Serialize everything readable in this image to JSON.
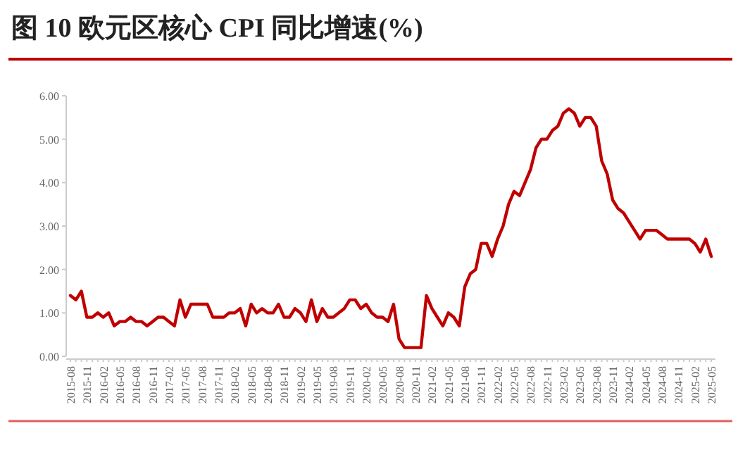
{
  "chart_data": {
    "type": "line",
    "title": "图 10 欧元区核心 CPI 同比增速(%)",
    "categories": [
      "2015-08",
      null,
      null,
      "2015-11",
      null,
      null,
      "2016-02",
      null,
      null,
      "2016-05",
      null,
      null,
      "2016-08",
      null,
      null,
      "2016-11",
      null,
      null,
      "2017-02",
      null,
      null,
      "2017-05",
      null,
      null,
      "2017-08",
      null,
      null,
      "2017-11",
      null,
      null,
      "2018-02",
      null,
      null,
      "2018-05",
      null,
      null,
      "2018-08",
      null,
      null,
      "2018-11",
      null,
      null,
      "2019-02",
      null,
      null,
      "2019-05",
      null,
      null,
      "2019-08",
      null,
      null,
      "2019-11",
      null,
      null,
      "2020-02",
      null,
      null,
      "2020-05",
      null,
      null,
      "2020-08",
      null,
      null,
      "2020-11",
      null,
      null,
      "2021-02",
      null,
      null,
      "2021-05",
      null,
      null,
      "2021-08",
      null,
      null,
      "2021-11",
      null,
      null,
      "2022-02",
      null,
      null,
      "2022-05",
      null,
      null,
      "2022-08",
      null,
      null,
      "2022-11",
      null,
      null,
      "2023-02",
      null,
      null,
      "2023-05",
      null,
      null,
      "2023-08",
      null,
      null,
      "2023-11",
      null,
      null,
      "2024-02",
      null,
      null,
      "2024-05",
      null,
      null,
      "2024-08",
      null,
      null,
      "2024-11",
      null,
      null,
      "2025-02",
      null,
      null,
      "2025-05"
    ],
    "series": [
      {
        "color": "#c00000",
        "values": [
          1.4,
          1.3,
          1.5,
          0.9,
          0.9,
          1.0,
          0.9,
          1.0,
          0.7,
          0.8,
          0.8,
          0.9,
          0.8,
          0.8,
          0.7,
          0.8,
          0.9,
          0.9,
          0.8,
          0.7,
          1.3,
          0.9,
          1.2,
          1.2,
          1.2,
          1.2,
          0.9,
          0.9,
          0.9,
          1.0,
          1.0,
          1.1,
          0.7,
          1.2,
          1.0,
          1.1,
          1.0,
          1.0,
          1.2,
          0.9,
          0.9,
          1.1,
          1.0,
          0.8,
          1.3,
          0.8,
          1.1,
          0.9,
          0.9,
          1.0,
          1.1,
          1.3,
          1.3,
          1.1,
          1.2,
          1.0,
          0.9,
          0.9,
          0.8,
          1.2,
          0.4,
          0.2,
          0.2,
          0.2,
          0.2,
          1.4,
          1.1,
          0.9,
          0.7,
          1.0,
          0.9,
          0.7,
          1.6,
          1.9,
          2.0,
          2.6,
          2.6,
          2.3,
          2.7,
          3.0,
          3.5,
          3.8,
          3.7,
          4.0,
          4.3,
          4.8,
          5.0,
          5.0,
          5.2,
          5.3,
          5.6,
          5.7,
          5.6,
          5.3,
          5.5,
          5.5,
          5.3,
          4.5,
          4.2,
          3.6,
          3.4,
          3.3,
          3.1,
          2.9,
          2.7,
          2.9,
          2.9,
          2.9,
          2.8,
          2.7,
          2.7,
          2.7,
          2.7,
          2.7,
          2.6,
          2.4,
          2.7,
          2.3
        ]
      }
    ],
    "ylim": [
      0,
      6
    ],
    "yticks": [
      {
        "value": 0,
        "label": "0.00"
      },
      {
        "value": 1,
        "label": "1.00"
      },
      {
        "value": 2,
        "label": "2.00"
      },
      {
        "value": 3,
        "label": "3.00"
      },
      {
        "value": 4,
        "label": "4.00"
      },
      {
        "value": 5,
        "label": "5.00"
      },
      {
        "value": 6,
        "label": "6.00"
      }
    ],
    "grid": false,
    "marker": "none",
    "line_style": "solid"
  }
}
